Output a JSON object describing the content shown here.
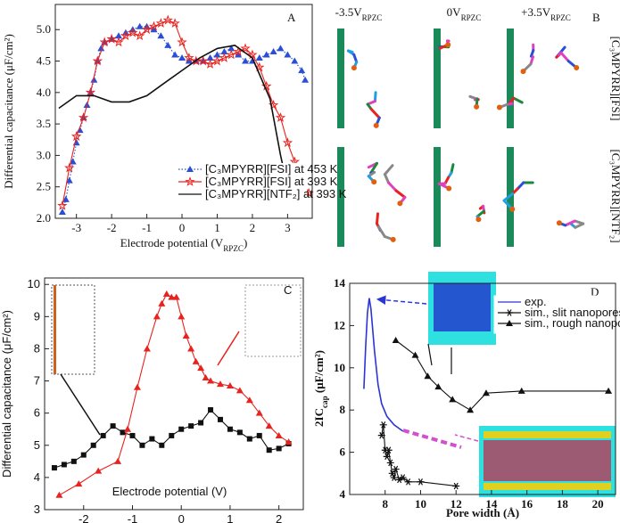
{
  "chart_data": [
    {
      "type": "line",
      "panel_label": "A",
      "x_label": [
        {
          "text": "Electrode potential (V"
        },
        {
          "text": "RPZC",
          "sub": true
        },
        {
          "text": ")"
        }
      ],
      "y_label": "Differential capacitance (μF/cm²)",
      "xlim": [
        -3.6,
        3.7
      ],
      "xticks": [
        -3,
        -2,
        -1,
        0,
        1,
        2,
        3
      ],
      "ylim": [
        2.0,
        5.4
      ],
      "yticks": [
        {
          "value": 2,
          "label": "2.0"
        },
        2.5,
        {
          "value": 3,
          "label": "3.0"
        },
        3.5,
        {
          "value": 4,
          "label": "4.0"
        },
        4.5,
        {
          "value": 5,
          "label": "5.0"
        }
      ],
      "series": [
        {
          "name": "[C₃MPYRR][FSI] at 453 K",
          "color": "#2a4fd6",
          "marker": "triangle",
          "line_style": "dotted",
          "x": [
            -3.4,
            -3.3,
            -3.2,
            -3.1,
            -3.0,
            -2.9,
            -2.8,
            -2.7,
            -2.6,
            -2.5,
            -2.4,
            -2.3,
            -2.2,
            -2.0,
            -1.8,
            -1.6,
            -1.4,
            -1.2,
            -1.0,
            -0.8,
            -0.6,
            -0.4,
            -0.2,
            0,
            0.2,
            0.4,
            0.6,
            0.8,
            1.0,
            1.2,
            1.4,
            1.6,
            1.8,
            2.0,
            2.2,
            2.4,
            2.6,
            2.8,
            3.0,
            3.2,
            3.4,
            3.5
          ],
          "values": [
            2.1,
            2.3,
            2.6,
            2.9,
            3.2,
            3.4,
            3.6,
            3.8,
            4.0,
            4.2,
            4.5,
            4.7,
            4.8,
            4.85,
            4.9,
            4.95,
            5.0,
            5.05,
            5.05,
            5.0,
            4.9,
            4.75,
            4.6,
            4.55,
            4.5,
            4.5,
            4.5,
            4.55,
            4.6,
            4.65,
            4.7,
            4.6,
            4.5,
            4.5,
            4.55,
            4.6,
            4.65,
            4.7,
            4.6,
            4.5,
            4.35,
            4.2
          ]
        },
        {
          "name": "[C₃MPYRR][FSI] at 393 K",
          "color": "#e8231f",
          "marker": "star",
          "line_style": "solid",
          "x": [
            -3.4,
            -3.2,
            -3.0,
            -2.8,
            -2.6,
            -2.4,
            -2.2,
            -2.0,
            -1.8,
            -1.6,
            -1.4,
            -1.2,
            -1.0,
            -0.8,
            -0.6,
            -0.4,
            -0.2,
            0,
            0.2,
            0.4,
            0.6,
            0.8,
            1.0,
            1.2,
            1.4,
            1.6,
            1.8,
            2.0,
            2.2,
            2.4,
            2.6,
            2.8,
            3.0,
            3.2,
            3.4,
            3.6
          ],
          "values": [
            2.2,
            2.8,
            3.3,
            3.6,
            4.0,
            4.5,
            4.8,
            4.85,
            4.8,
            4.9,
            4.95,
            4.9,
            5.0,
            5.05,
            5.1,
            5.15,
            5.1,
            4.8,
            4.55,
            4.5,
            4.5,
            4.45,
            4.5,
            4.55,
            4.6,
            4.65,
            4.7,
            4.6,
            4.4,
            4.1,
            3.8,
            3.6,
            3.2,
            2.9,
            2.6,
            2.4
          ]
        },
        {
          "name": "[C₃MPYRR][NTF₂] at 393 K",
          "color": "#111111",
          "marker": "none",
          "line_style": "solid",
          "x": [
            -3.5,
            -3.0,
            -2.5,
            -2.0,
            -1.5,
            -1.0,
            -0.5,
            0,
            0.5,
            1.0,
            1.5,
            2.0,
            2.5,
            2.8,
            3.0
          ],
          "values": [
            3.75,
            3.95,
            3.95,
            3.85,
            3.85,
            3.95,
            4.15,
            4.35,
            4.55,
            4.7,
            4.75,
            4.55,
            3.9,
            3.0,
            2.5
          ]
        }
      ]
    },
    {
      "type": "line",
      "panel_label": "C",
      "x_label": "Electrode potential (V)",
      "y_label": "Differential capacitance (μF/cm²)",
      "xlim": [
        -2.8,
        2.5
      ],
      "xticks": [
        -2,
        -1,
        0,
        1,
        2
      ],
      "ylim": [
        3,
        10.2
      ],
      "yticks": [
        3,
        4,
        5,
        6,
        7,
        8,
        9,
        10
      ],
      "series": [
        {
          "color": "#111111",
          "marker": "square",
          "line_style": "solid",
          "x": [
            -2.6,
            -2.4,
            -2.2,
            -2.0,
            -1.8,
            -1.6,
            -1.4,
            -1.2,
            -1.0,
            -0.8,
            -0.6,
            -0.4,
            -0.2,
            0,
            0.2,
            0.4,
            0.6,
            0.8,
            1.0,
            1.2,
            1.4,
            1.6,
            1.8,
            2.0,
            2.2
          ],
          "values": [
            4.3,
            4.4,
            4.5,
            4.7,
            5.0,
            5.3,
            5.6,
            5.4,
            5.3,
            5.0,
            5.2,
            5.0,
            5.3,
            5.5,
            5.6,
            5.7,
            6.1,
            5.8,
            5.5,
            5.4,
            5.2,
            5.3,
            4.85,
            4.9,
            5.05
          ]
        },
        {
          "color": "#e8231f",
          "marker": "triangle",
          "line_style": "solid",
          "x": [
            -2.5,
            -2.1,
            -1.7,
            -1.3,
            -1.1,
            -0.9,
            -0.7,
            -0.5,
            -0.4,
            -0.3,
            -0.2,
            -0.1,
            0,
            0.1,
            0.2,
            0.3,
            0.4,
            0.5,
            0.6,
            0.8,
            1.0,
            1.2,
            1.4,
            1.6,
            1.8,
            2.0,
            2.2
          ],
          "values": [
            3.45,
            3.8,
            4.2,
            4.5,
            5.5,
            6.8,
            8.0,
            9.0,
            9.4,
            9.7,
            9.6,
            9.6,
            9.0,
            8.4,
            8.0,
            7.6,
            7.4,
            7.1,
            7.0,
            6.9,
            6.85,
            6.7,
            6.4,
            6.0,
            5.6,
            5.3,
            5.1
          ]
        }
      ]
    },
    {
      "type": "line",
      "panel_label": "D",
      "x_label": "Pore width (Å)",
      "y_label": [
        {
          "text": "2IC"
        },
        {
          "text": "cap",
          "sub": true
        },
        {
          "text": " (μF/cm²)"
        }
      ],
      "xlim": [
        6,
        21
      ],
      "xticks": [
        8,
        10,
        12,
        14,
        16,
        18,
        20
      ],
      "ylim": [
        4,
        14
      ],
      "yticks": [
        4,
        6,
        8,
        10,
        12,
        14
      ],
      "series": [
        {
          "name": "exp.",
          "color": "#2a35d6",
          "marker": "none",
          "line_style": "solid",
          "x": [
            6.8,
            6.9,
            7.0,
            7.1,
            7.2,
            7.4,
            7.6,
            7.8,
            8.1,
            8.5,
            9.0
          ],
          "values": [
            9.0,
            11.0,
            12.6,
            13.3,
            12.8,
            10.8,
            9.2,
            8.3,
            7.7,
            7.3,
            7.0
          ]
        },
        {
          "name": "sim., slit nanopores",
          "color": "#111111",
          "marker": "asterisk",
          "line_style": "solid",
          "x": [
            7.8,
            7.9,
            8.0,
            8.1,
            8.2,
            8.3,
            8.4,
            8.5,
            8.6,
            8.8,
            9.0,
            9.3,
            10.0,
            12.0
          ],
          "values": [
            6.8,
            7.3,
            6.1,
            5.8,
            6.1,
            5.5,
            5.0,
            4.8,
            5.2,
            4.7,
            4.8,
            4.6,
            4.6,
            4.4
          ]
        },
        {
          "name": "sim., rough nanopores",
          "color": "#111111",
          "marker": "triangle",
          "line_style": "solid",
          "x": [
            8.6,
            9.7,
            10.4,
            11.0,
            11.8,
            12.8,
            13.7,
            15.7,
            20.6
          ],
          "values": [
            11.3,
            10.6,
            9.6,
            9.1,
            8.5,
            8.0,
            8.8,
            8.9,
            8.9
          ]
        }
      ]
    }
  ],
  "panel_b": {
    "panel_label": "B",
    "columns": [
      [
        {
          "text": "-3.5V"
        },
        {
          "text": "RPZC",
          "sub": true
        }
      ],
      [
        {
          "text": "0V"
        },
        {
          "text": "RPZC",
          "sub": true
        }
      ],
      [
        {
          "text": "+3.5V"
        },
        {
          "text": "RPZC",
          "sub": true
        }
      ]
    ],
    "rows": [
      "[C₃MPYRR][FSI]",
      "[C₃MPYRR][NTF₂]"
    ]
  }
}
